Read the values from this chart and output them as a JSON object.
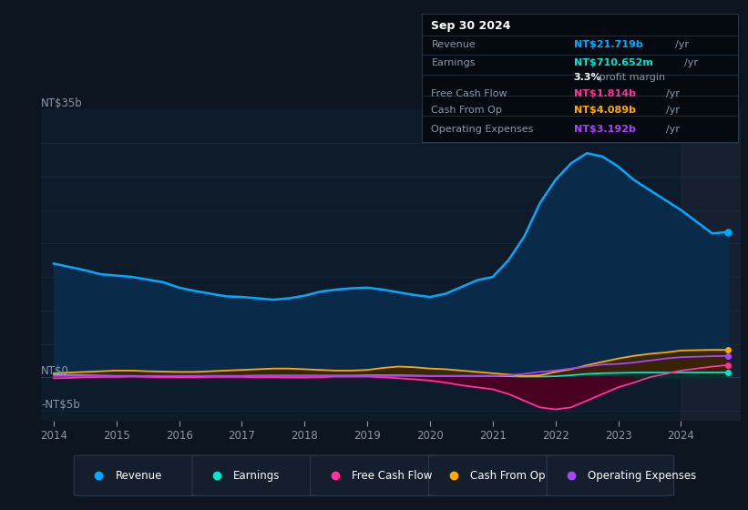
{
  "bg_color": "#0d1520",
  "chart_bg": "#0d1b2a",
  "grid_color": "#1a2d40",
  "divider_bg": "#162030",
  "ylabel_35": "NT$35b",
  "ylabel_0": "NT$0",
  "ylabel_neg5": "-NT$5b",
  "years": [
    2014.0,
    2014.25,
    2014.5,
    2014.75,
    2015.0,
    2015.25,
    2015.5,
    2015.75,
    2016.0,
    2016.25,
    2016.5,
    2016.75,
    2017.0,
    2017.25,
    2017.5,
    2017.75,
    2018.0,
    2018.25,
    2018.5,
    2018.75,
    2019.0,
    2019.25,
    2019.5,
    2019.75,
    2020.0,
    2020.25,
    2020.5,
    2020.75,
    2021.0,
    2021.25,
    2021.5,
    2021.75,
    2022.0,
    2022.25,
    2022.5,
    2022.75,
    2023.0,
    2023.25,
    2023.5,
    2023.75,
    2024.0,
    2024.5,
    2024.75
  ],
  "revenue": [
    17.0,
    16.5,
    16.0,
    15.4,
    15.2,
    15.0,
    14.6,
    14.2,
    13.4,
    12.9,
    12.5,
    12.1,
    12.0,
    11.8,
    11.6,
    11.8,
    12.2,
    12.8,
    13.1,
    13.3,
    13.4,
    13.1,
    12.7,
    12.3,
    12.0,
    12.5,
    13.5,
    14.5,
    15.0,
    17.5,
    21.0,
    26.0,
    29.5,
    32.0,
    33.5,
    33.0,
    31.5,
    29.5,
    28.0,
    26.5,
    25.0,
    21.5,
    21.719
  ],
  "earnings": [
    0.4,
    0.35,
    0.3,
    0.25,
    0.2,
    0.2,
    0.15,
    0.15,
    0.15,
    0.15,
    0.2,
    0.2,
    0.2,
    0.25,
    0.25,
    0.25,
    0.25,
    0.25,
    0.25,
    0.25,
    0.3,
    0.3,
    0.3,
    0.25,
    0.2,
    0.2,
    0.2,
    0.2,
    0.2,
    0.15,
    0.1,
    0.1,
    0.15,
    0.3,
    0.5,
    0.6,
    0.65,
    0.7,
    0.72,
    0.7,
    0.72,
    0.71,
    0.711
  ],
  "free_cash_flow": [
    -0.15,
    -0.1,
    0.0,
    0.05,
    0.05,
    0.1,
    0.05,
    0.0,
    0.0,
    0.0,
    0.05,
    0.05,
    0.05,
    0.0,
    0.0,
    -0.05,
    -0.05,
    0.0,
    0.1,
    0.1,
    0.1,
    0.0,
    -0.15,
    -0.3,
    -0.5,
    -0.8,
    -1.2,
    -1.5,
    -1.8,
    -2.5,
    -3.5,
    -4.5,
    -4.8,
    -4.5,
    -3.5,
    -2.5,
    -1.5,
    -0.8,
    0.0,
    0.5,
    1.0,
    1.6,
    1.814
  ],
  "cash_from_op": [
    0.6,
    0.7,
    0.8,
    0.9,
    1.0,
    1.0,
    0.9,
    0.85,
    0.8,
    0.8,
    0.9,
    1.0,
    1.1,
    1.2,
    1.3,
    1.3,
    1.2,
    1.1,
    1.0,
    1.0,
    1.1,
    1.4,
    1.6,
    1.5,
    1.3,
    1.2,
    1.0,
    0.8,
    0.6,
    0.4,
    0.2,
    0.3,
    0.8,
    1.2,
    1.8,
    2.3,
    2.8,
    3.2,
    3.5,
    3.7,
    4.0,
    4.1,
    4.089
  ],
  "operating_expenses": [
    0.2,
    0.2,
    0.2,
    0.2,
    0.2,
    0.2,
    0.2,
    0.2,
    0.2,
    0.2,
    0.2,
    0.2,
    0.2,
    0.2,
    0.2,
    0.2,
    0.2,
    0.2,
    0.2,
    0.2,
    0.2,
    0.2,
    0.2,
    0.2,
    0.2,
    0.2,
    0.2,
    0.2,
    0.2,
    0.3,
    0.5,
    0.8,
    1.0,
    1.3,
    1.6,
    1.9,
    2.0,
    2.2,
    2.5,
    2.8,
    3.0,
    3.15,
    3.192
  ],
  "revenue_color": "#00aaff",
  "earnings_color": "#00e5cc",
  "fcf_color": "#ff3399",
  "cashop_color": "#ffaa00",
  "opex_color": "#aa44ff",
  "revenue_fill": "#0a2a4a",
  "earnings_fill": "#003330",
  "fcf_fill_neg": "#4a0020",
  "cashop_fill": "#3a2800",
  "opex_fill": "#280040",
  "info_box": {
    "date": "Sep 30 2024",
    "revenue_label": "Revenue",
    "revenue_value": "NT$21.719b",
    "revenue_color": "#00aaff",
    "earnings_label": "Earnings",
    "earnings_value": "NT$710.652m",
    "earnings_color": "#00e5cc",
    "margin_text": "3.3%",
    "margin_label": " profit margin",
    "fcf_label": "Free Cash Flow",
    "fcf_value": "NT$1.814b",
    "fcf_color": "#ff3399",
    "cashop_label": "Cash From Op",
    "cashop_value": "NT$4.089b",
    "cashop_color": "#ffaa00",
    "opex_label": "Operating Expenses",
    "opex_value": "NT$3.192b",
    "opex_color": "#aa44ff"
  },
  "legend": [
    {
      "label": "Revenue",
      "color": "#00aaff"
    },
    {
      "label": "Earnings",
      "color": "#00e5cc"
    },
    {
      "label": "Free Cash Flow",
      "color": "#ff3399"
    },
    {
      "label": "Cash From Op",
      "color": "#ffaa00"
    },
    {
      "label": "Operating Expenses",
      "color": "#aa44ff"
    }
  ],
  "xticks": [
    2014,
    2015,
    2016,
    2017,
    2018,
    2019,
    2020,
    2021,
    2022,
    2023,
    2024
  ],
  "ylim": [
    -6.5,
    40
  ],
  "xlim": [
    2013.8,
    2024.95
  ],
  "divider_x": 2024.0
}
